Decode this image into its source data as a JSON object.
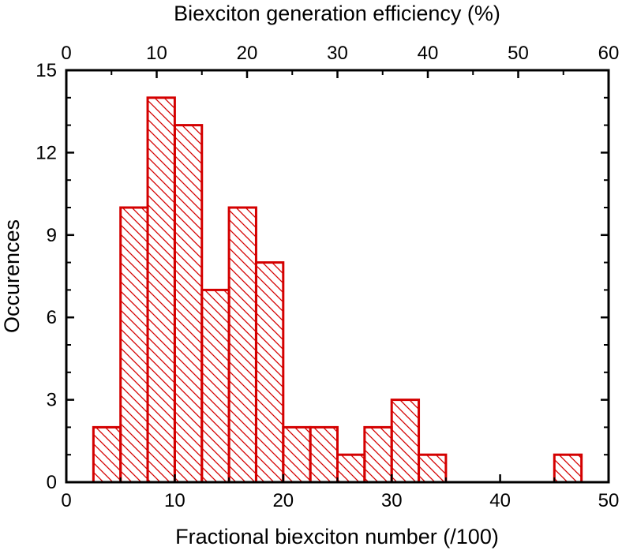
{
  "chart_data": {
    "type": "bar",
    "title": "",
    "xlabel": "Fractional biexciton number (/100)",
    "x2label": "Biexciton generation efficiency (%)",
    "ylabel": "Occurences",
    "xlim": [
      0,
      50
    ],
    "x2lim": [
      0,
      60
    ],
    "ylim": [
      0,
      15
    ],
    "xticks": [
      "0",
      "10",
      "20",
      "30",
      "40",
      "50"
    ],
    "x2ticks": [
      "0",
      "10",
      "20",
      "30",
      "40",
      "50",
      "60"
    ],
    "yticks": [
      "0",
      "3",
      "6",
      "9",
      "12",
      "15"
    ],
    "bin_width": 2.5,
    "bins": [
      {
        "start": 2.5,
        "end": 5.0,
        "count": 2
      },
      {
        "start": 5.0,
        "end": 7.5,
        "count": 10
      },
      {
        "start": 7.5,
        "end": 10.0,
        "count": 14
      },
      {
        "start": 10.0,
        "end": 12.5,
        "count": 13
      },
      {
        "start": 12.5,
        "end": 15.0,
        "count": 7
      },
      {
        "start": 15.0,
        "end": 17.5,
        "count": 10
      },
      {
        "start": 17.5,
        "end": 20.0,
        "count": 8
      },
      {
        "start": 20.0,
        "end": 22.5,
        "count": 2
      },
      {
        "start": 22.5,
        "end": 25.0,
        "count": 2
      },
      {
        "start": 25.0,
        "end": 27.5,
        "count": 1
      },
      {
        "start": 27.5,
        "end": 30.0,
        "count": 2
      },
      {
        "start": 30.0,
        "end": 32.5,
        "count": 3
      },
      {
        "start": 32.5,
        "end": 35.0,
        "count": 1
      },
      {
        "start": 45.0,
        "end": 47.5,
        "count": 1
      }
    ],
    "colors": {
      "bar_edge": "#d40000",
      "hatch": "#d40000",
      "axis": "#000000"
    },
    "hatch": "diagonal"
  }
}
